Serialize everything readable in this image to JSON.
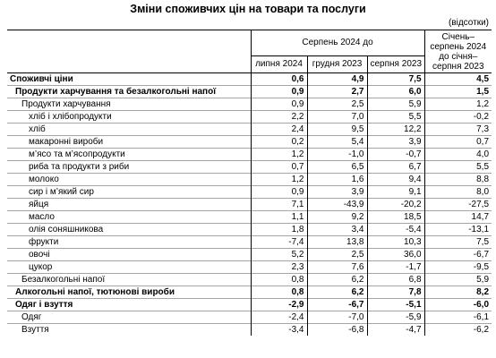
{
  "title": "Зміни споживчих цін на товари та послуги",
  "unit": "(відсотки)",
  "header": {
    "group": "Серпень 2024 до",
    "cols": [
      "липня 2024",
      "грудня 2023",
      "серпня 2023"
    ],
    "ytd": "Січень–серпень 2024 до січня–серпня 2023"
  },
  "rows": [
    {
      "label": "Споживчі ціни",
      "level": 0,
      "bold": true,
      "values": [
        "0,6",
        "4,9",
        "7,5",
        "4,5"
      ]
    },
    {
      "label": "Продукти харчування та безалкогольні напої",
      "level": 1,
      "bold": true,
      "values": [
        "0,9",
        "2,7",
        "6,0",
        "1,5"
      ]
    },
    {
      "label": "Продукти харчування",
      "level": 2,
      "bold": false,
      "values": [
        "0,9",
        "2,5",
        "5,9",
        "1,2"
      ]
    },
    {
      "label": "хліб і хлібопродукти",
      "level": 3,
      "bold": false,
      "values": [
        "2,2",
        "7,0",
        "5,5",
        "-0,2"
      ]
    },
    {
      "label": "хліб",
      "level": 3,
      "bold": false,
      "values": [
        "2,4",
        "9,5",
        "12,2",
        "7,3"
      ]
    },
    {
      "label": "макаронні вироби",
      "level": 3,
      "bold": false,
      "values": [
        "0,2",
        "5,4",
        "3,9",
        "0,7"
      ]
    },
    {
      "label": "м’ясо та м’ясопродукти",
      "level": 3,
      "bold": false,
      "values": [
        "1,2",
        "-1,0",
        "-0,7",
        "4,0"
      ]
    },
    {
      "label": "риба та продукти з риби",
      "level": 3,
      "bold": false,
      "values": [
        "0,7",
        "6,5",
        "6,7",
        "5,5"
      ]
    },
    {
      "label": "молоко",
      "level": 3,
      "bold": false,
      "values": [
        "1,2",
        "1,6",
        "9,4",
        "8,8"
      ]
    },
    {
      "label": "сир і м’який сир",
      "level": 3,
      "bold": false,
      "values": [
        "0,9",
        "3,9",
        "9,1",
        "8,0"
      ]
    },
    {
      "label": "яйця",
      "level": 3,
      "bold": false,
      "values": [
        "7,1",
        "-43,9",
        "-20,2",
        "-27,5"
      ]
    },
    {
      "label": "масло",
      "level": 3,
      "bold": false,
      "values": [
        "1,1",
        "9,2",
        "18,5",
        "14,7"
      ]
    },
    {
      "label": "олія соняшникова",
      "level": 3,
      "bold": false,
      "values": [
        "1,8",
        "3,4",
        "-5,4",
        "-13,1"
      ]
    },
    {
      "label": "фрукти",
      "level": 3,
      "bold": false,
      "values": [
        "-7,4",
        "13,8",
        "10,3",
        "7,5"
      ]
    },
    {
      "label": "овочі",
      "level": 3,
      "bold": false,
      "values": [
        "5,2",
        "2,5",
        "36,0",
        "-6,7"
      ]
    },
    {
      "label": "цукор",
      "level": 3,
      "bold": false,
      "values": [
        "2,3",
        "7,6",
        "-1,7",
        "-9,5"
      ]
    },
    {
      "label": "Безалкогольні напої",
      "level": 2,
      "bold": false,
      "values": [
        "0,8",
        "6,2",
        "6,8",
        "5,9"
      ]
    },
    {
      "label": "Алкогольні напої, тютюнові вироби",
      "level": 1,
      "bold": true,
      "values": [
        "0,8",
        "6,2",
        "7,8",
        "8,2"
      ]
    },
    {
      "label": "Одяг і взуття",
      "level": 1,
      "bold": true,
      "values": [
        "-2,9",
        "-6,7",
        "-5,1",
        "-6,0"
      ]
    },
    {
      "label": "Одяг",
      "level": 2,
      "bold": false,
      "values": [
        "-2,4",
        "-7,0",
        "-5,9",
        "-6,1"
      ]
    },
    {
      "label": "Взуття",
      "level": 2,
      "bold": false,
      "values": [
        "-3,4",
        "-6,8",
        "-4,7",
        "-6,2"
      ]
    }
  ]
}
